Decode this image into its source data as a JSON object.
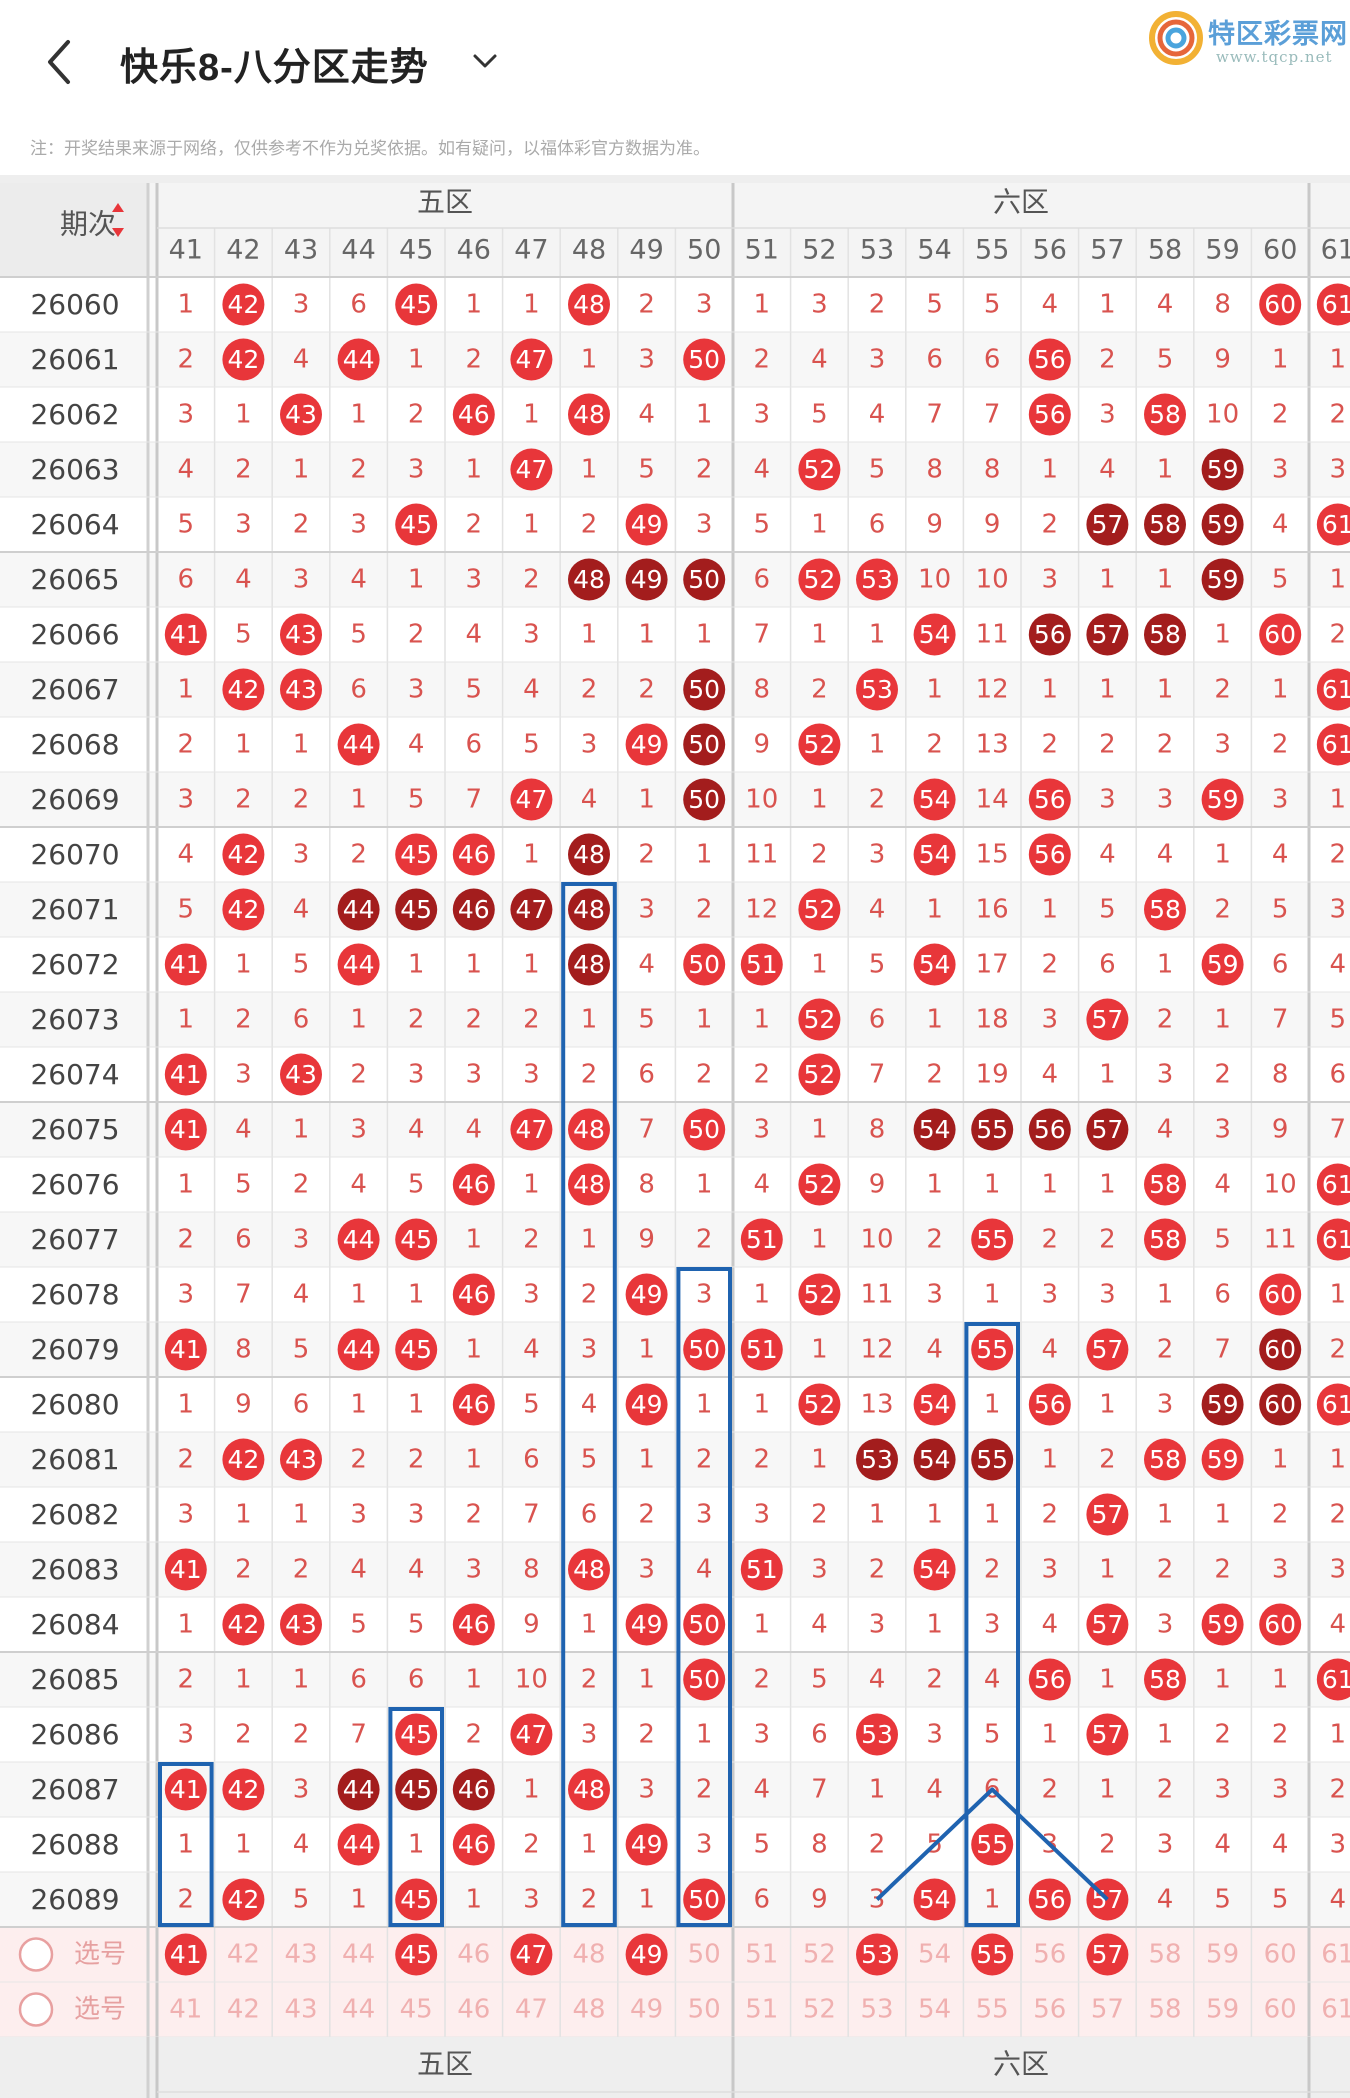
{
  "header": {
    "title": "快乐8-八分区走势",
    "logo_text": "特区彩票网",
    "logo_url": "www.tqcp.net"
  },
  "notice": "注：开奖结果来源于网络，仅供参考不作为兑奖依据。如有疑问，以福体彩官方数据为准。",
  "colors": {
    "hit": "#e8363a",
    "repeat": "#a31d1d",
    "box": "#1f63b0",
    "row_alt": "#fdeeee"
  },
  "table": {
    "period_header": "期次",
    "zones": [
      {
        "name": "五区",
        "start": 41
      },
      {
        "name": "六区",
        "start": 51
      }
    ],
    "columns": [
      "41",
      "42",
      "43",
      "44",
      "45",
      "46",
      "47",
      "48",
      "49",
      "50",
      "51",
      "52",
      "53",
      "54",
      "55",
      "56",
      "57",
      "58",
      "59",
      "60",
      "61"
    ],
    "select_label": "选号",
    "periods": [
      "26060",
      "26061",
      "26062",
      "26063",
      "26064",
      "26065",
      "26066",
      "26067",
      "26068",
      "26069",
      "26070",
      "26071",
      "26072",
      "26073",
      "26074",
      "26075",
      "26076",
      "26077",
      "26078",
      "26079",
      "26080",
      "26081",
      "26082",
      "26083",
      "26084",
      "26085",
      "26086",
      "26087",
      "26088",
      "26089"
    ],
    "rows": [
      [
        "1",
        "42",
        "3",
        "6",
        "45",
        "1",
        "1",
        "48",
        "2",
        "3",
        "1",
        "3",
        "2",
        "5",
        "5",
        "4",
        "1",
        "4",
        "8",
        "60",
        "61"
      ],
      [
        "2",
        "42",
        "4",
        "44",
        "1",
        "2",
        "47",
        "1",
        "3",
        "50",
        "2",
        "4",
        "3",
        "6",
        "6",
        "56",
        "2",
        "5",
        "9",
        "1",
        "1"
      ],
      [
        "3",
        "1",
        "43",
        "1",
        "2",
        "46",
        "1",
        "48",
        "4",
        "1",
        "3",
        "5",
        "4",
        "7",
        "7",
        "56",
        "3",
        "58",
        "10",
        "2",
        "2"
      ],
      [
        "4",
        "2",
        "1",
        "2",
        "3",
        "1",
        "47",
        "1",
        "5",
        "2",
        "4",
        "52",
        "5",
        "8",
        "8",
        "1",
        "4",
        "1",
        "59",
        "3",
        "3"
      ],
      [
        "5",
        "3",
        "2",
        "3",
        "45",
        "2",
        "1",
        "2",
        "49",
        "3",
        "5",
        "1",
        "6",
        "9",
        "9",
        "2",
        "57",
        "58",
        "59",
        "4",
        "61"
      ],
      [
        "6",
        "4",
        "3",
        "4",
        "1",
        "3",
        "2",
        "48",
        "49",
        "50",
        "6",
        "52",
        "53",
        "10",
        "10",
        "3",
        "1",
        "1",
        "59",
        "5",
        "1"
      ],
      [
        "41",
        "5",
        "43",
        "5",
        "2",
        "4",
        "3",
        "1",
        "1",
        "1",
        "7",
        "1",
        "1",
        "54",
        "11",
        "56",
        "57",
        "58",
        "1",
        "60",
        "2"
      ],
      [
        "1",
        "42",
        "43",
        "6",
        "3",
        "5",
        "4",
        "2",
        "2",
        "50",
        "8",
        "2",
        "53",
        "1",
        "12",
        "1",
        "1",
        "1",
        "2",
        "1",
        "61"
      ],
      [
        "2",
        "1",
        "1",
        "44",
        "4",
        "6",
        "5",
        "3",
        "49",
        "50",
        "9",
        "52",
        "1",
        "2",
        "13",
        "2",
        "2",
        "2",
        "3",
        "2",
        "61"
      ],
      [
        "3",
        "2",
        "2",
        "1",
        "5",
        "7",
        "47",
        "4",
        "1",
        "50",
        "10",
        "1",
        "2",
        "54",
        "14",
        "56",
        "3",
        "3",
        "59",
        "3",
        "1"
      ],
      [
        "4",
        "42",
        "3",
        "2",
        "45",
        "46",
        "1",
        "48",
        "2",
        "1",
        "11",
        "2",
        "3",
        "54",
        "15",
        "56",
        "4",
        "4",
        "1",
        "4",
        "2"
      ],
      [
        "5",
        "42",
        "4",
        "44",
        "45",
        "46",
        "47",
        "48",
        "3",
        "2",
        "12",
        "52",
        "4",
        "1",
        "16",
        "1",
        "5",
        "58",
        "2",
        "5",
        "3"
      ],
      [
        "41",
        "1",
        "5",
        "44",
        "1",
        "1",
        "1",
        "48",
        "4",
        "50",
        "51",
        "1",
        "5",
        "54",
        "17",
        "2",
        "6",
        "1",
        "59",
        "6",
        "4"
      ],
      [
        "1",
        "2",
        "6",
        "1",
        "2",
        "2",
        "2",
        "1",
        "5",
        "1",
        "1",
        "52",
        "6",
        "1",
        "18",
        "3",
        "57",
        "2",
        "1",
        "7",
        "5"
      ],
      [
        "41",
        "3",
        "43",
        "2",
        "3",
        "3",
        "3",
        "2",
        "6",
        "2",
        "2",
        "52",
        "7",
        "2",
        "19",
        "4",
        "1",
        "3",
        "2",
        "8",
        "6"
      ],
      [
        "41",
        "4",
        "1",
        "3",
        "4",
        "4",
        "47",
        "48",
        "7",
        "50",
        "3",
        "1",
        "8",
        "54",
        "55",
        "56",
        "57",
        "4",
        "3",
        "9",
        "7"
      ],
      [
        "1",
        "5",
        "2",
        "4",
        "5",
        "46",
        "1",
        "48",
        "8",
        "1",
        "4",
        "52",
        "9",
        "1",
        "1",
        "1",
        "1",
        "58",
        "4",
        "10",
        "61"
      ],
      [
        "2",
        "6",
        "3",
        "44",
        "45",
        "1",
        "2",
        "1",
        "9",
        "2",
        "51",
        "1",
        "10",
        "2",
        "55",
        "2",
        "2",
        "58",
        "5",
        "11",
        "61"
      ],
      [
        "3",
        "7",
        "4",
        "1",
        "1",
        "46",
        "3",
        "2",
        "49",
        "3",
        "1",
        "52",
        "11",
        "3",
        "1",
        "3",
        "3",
        "1",
        "6",
        "60",
        "1"
      ],
      [
        "41",
        "8",
        "5",
        "44",
        "45",
        "1",
        "4",
        "3",
        "1",
        "50",
        "51",
        "1",
        "12",
        "4",
        "55",
        "4",
        "57",
        "2",
        "7",
        "60",
        "2"
      ],
      [
        "1",
        "9",
        "6",
        "1",
        "1",
        "46",
        "5",
        "4",
        "49",
        "1",
        "1",
        "52",
        "13",
        "54",
        "1",
        "56",
        "1",
        "3",
        "59",
        "60",
        "61"
      ],
      [
        "2",
        "42",
        "43",
        "2",
        "2",
        "1",
        "6",
        "5",
        "1",
        "2",
        "2",
        "1",
        "53",
        "54",
        "55",
        "1",
        "2",
        "58",
        "59",
        "1",
        "1"
      ],
      [
        "3",
        "1",
        "1",
        "3",
        "3",
        "2",
        "7",
        "6",
        "2",
        "3",
        "3",
        "2",
        "1",
        "1",
        "1",
        "2",
        "57",
        "1",
        "1",
        "2",
        "2"
      ],
      [
        "41",
        "2",
        "2",
        "4",
        "4",
        "3",
        "8",
        "48",
        "3",
        "4",
        "51",
        "3",
        "2",
        "54",
        "2",
        "3",
        "1",
        "2",
        "2",
        "3",
        "3"
      ],
      [
        "1",
        "42",
        "43",
        "5",
        "5",
        "46",
        "9",
        "1",
        "49",
        "50",
        "1",
        "4",
        "3",
        "1",
        "3",
        "4",
        "57",
        "3",
        "59",
        "60",
        "4"
      ],
      [
        "2",
        "1",
        "1",
        "6",
        "6",
        "1",
        "10",
        "2",
        "1",
        "50",
        "2",
        "5",
        "4",
        "2",
        "4",
        "56",
        "1",
        "58",
        "1",
        "1",
        "61"
      ],
      [
        "3",
        "2",
        "2",
        "7",
        "45",
        "2",
        "47",
        "3",
        "2",
        "1",
        "3",
        "6",
        "53",
        "3",
        "5",
        "1",
        "57",
        "1",
        "2",
        "2",
        "1"
      ],
      [
        "41",
        "42",
        "3",
        "44",
        "45",
        "46",
        "1",
        "48",
        "3",
        "2",
        "4",
        "7",
        "1",
        "4",
        "6",
        "2",
        "1",
        "2",
        "3",
        "3",
        "2"
      ],
      [
        "1",
        "1",
        "4",
        "44",
        "1",
        "46",
        "2",
        "1",
        "49",
        "3",
        "5",
        "8",
        "2",
        "5",
        "55",
        "3",
        "2",
        "3",
        "4",
        "4",
        "3"
      ],
      [
        "2",
        "42",
        "5",
        "1",
        "45",
        "1",
        "3",
        "2",
        "1",
        "50",
        "6",
        "9",
        "3",
        "54",
        "1",
        "56",
        "57",
        "4",
        "5",
        "5",
        "4"
      ]
    ],
    "dark_hits": [
      [
        3,
        18
      ],
      [
        4,
        16
      ],
      [
        4,
        17
      ],
      [
        4,
        18
      ],
      [
        5,
        7
      ],
      [
        5,
        8
      ],
      [
        5,
        9
      ],
      [
        5,
        18
      ],
      [
        6,
        15
      ],
      [
        6,
        16
      ],
      [
        6,
        17
      ],
      [
        7,
        9
      ],
      [
        8,
        9
      ],
      [
        9,
        9
      ],
      [
        10,
        7
      ],
      [
        11,
        3
      ],
      [
        11,
        4
      ],
      [
        11,
        5
      ],
      [
        11,
        6
      ],
      [
        11,
        7
      ],
      [
        12,
        7
      ],
      [
        15,
        13
      ],
      [
        15,
        14
      ],
      [
        15,
        15
      ],
      [
        15,
        16
      ],
      [
        19,
        19
      ],
      [
        20,
        18
      ],
      [
        20,
        19
      ],
      [
        21,
        12
      ],
      [
        21,
        13
      ],
      [
        21,
        14
      ],
      [
        27,
        3
      ],
      [
        27,
        4
      ],
      [
        27,
        5
      ]
    ],
    "select_row_1": [
      {
        "num": "41",
        "hit": true
      },
      {
        "num": "42"
      },
      {
        "num": "43"
      },
      {
        "num": "44"
      },
      {
        "num": "45",
        "hit": true
      },
      {
        "num": "46"
      },
      {
        "num": "47",
        "hit": true
      },
      {
        "num": "48"
      },
      {
        "num": "49",
        "hit": true
      },
      {
        "num": "50"
      },
      {
        "num": "51"
      },
      {
        "num": "52"
      },
      {
        "num": "53",
        "hit": true
      },
      {
        "num": "54"
      },
      {
        "num": "55",
        "hit": true
      },
      {
        "num": "56"
      },
      {
        "num": "57",
        "hit": true
      },
      {
        "num": "58"
      },
      {
        "num": "59"
      },
      {
        "num": "60"
      },
      {
        "num": "61"
      }
    ],
    "select_row_2": [
      "41",
      "42",
      "43",
      "44",
      "45",
      "46",
      "47",
      "48",
      "49",
      "50",
      "51",
      "52",
      "53",
      "54",
      "55",
      "56",
      "57",
      "58",
      "59",
      "60",
      "61"
    ],
    "footer_zones": [
      "五区",
      "六区"
    ]
  }
}
